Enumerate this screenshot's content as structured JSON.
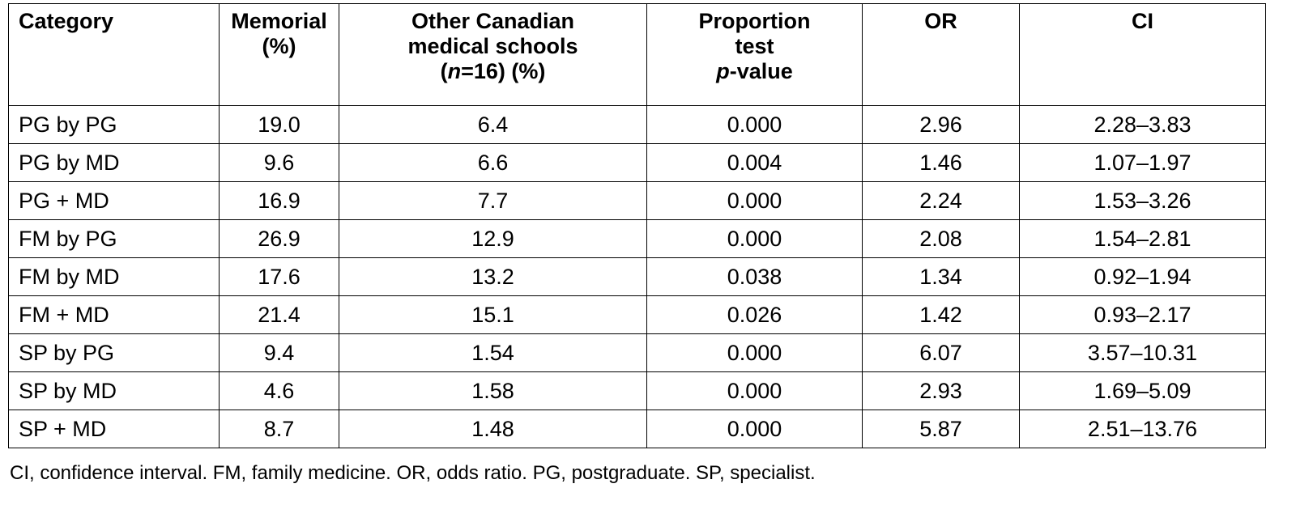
{
  "table": {
    "headers": {
      "category": "Category",
      "memorial_line1": "Memorial",
      "memorial_line2": "(%)",
      "other_line1": "Other Canadian",
      "other_line2": "medical schools",
      "other_n_open": "(",
      "other_n_italic": "n",
      "other_n_rest": "=16) (%)",
      "proportion_line1": "Proportion",
      "proportion_line2": "test",
      "proportion_p_italic": "p",
      "proportion_p_rest": "-value",
      "or": "OR",
      "ci": "CI"
    },
    "rows": [
      {
        "category": "PG by PG",
        "memorial": "19.0",
        "other": "6.4",
        "p_value": "0.000",
        "or": "2.96",
        "ci": "2.28–3.83"
      },
      {
        "category": "PG by MD",
        "memorial": "9.6",
        "other": "6.6",
        "p_value": "0.004",
        "or": "1.46",
        "ci": "1.07–1.97"
      },
      {
        "category": "PG + MD",
        "memorial": "16.9",
        "other": "7.7",
        "p_value": "0.000",
        "or": "2.24",
        "ci": "1.53–3.26"
      },
      {
        "category": "FM by PG",
        "memorial": "26.9",
        "other": "12.9",
        "p_value": "0.000",
        "or": "2.08",
        "ci": "1.54–2.81"
      },
      {
        "category": "FM by MD",
        "memorial": "17.6",
        "other": "13.2",
        "p_value": "0.038",
        "or": "1.34",
        "ci": "0.92–1.94"
      },
      {
        "category": "FM + MD",
        "memorial": "21.4",
        "other": "15.1",
        "p_value": "0.026",
        "or": "1.42",
        "ci": "0.93–2.17"
      },
      {
        "category": "SP by PG",
        "memorial": "9.4",
        "other": "1.54",
        "p_value": "0.000",
        "or": "6.07",
        "ci": "3.57–10.31"
      },
      {
        "category": "SP by MD",
        "memorial": "4.6",
        "other": "1.58",
        "p_value": "0.000",
        "or": "2.93",
        "ci": "1.69–5.09"
      },
      {
        "category": "SP + MD",
        "memorial": "8.7",
        "other": "1.48",
        "p_value": "0.000",
        "or": "5.87",
        "ci": "2.51–13.76"
      }
    ]
  },
  "footnote": "CI, confidence interval. FM, family medicine. OR, odds ratio. PG, postgraduate. SP, specialist."
}
